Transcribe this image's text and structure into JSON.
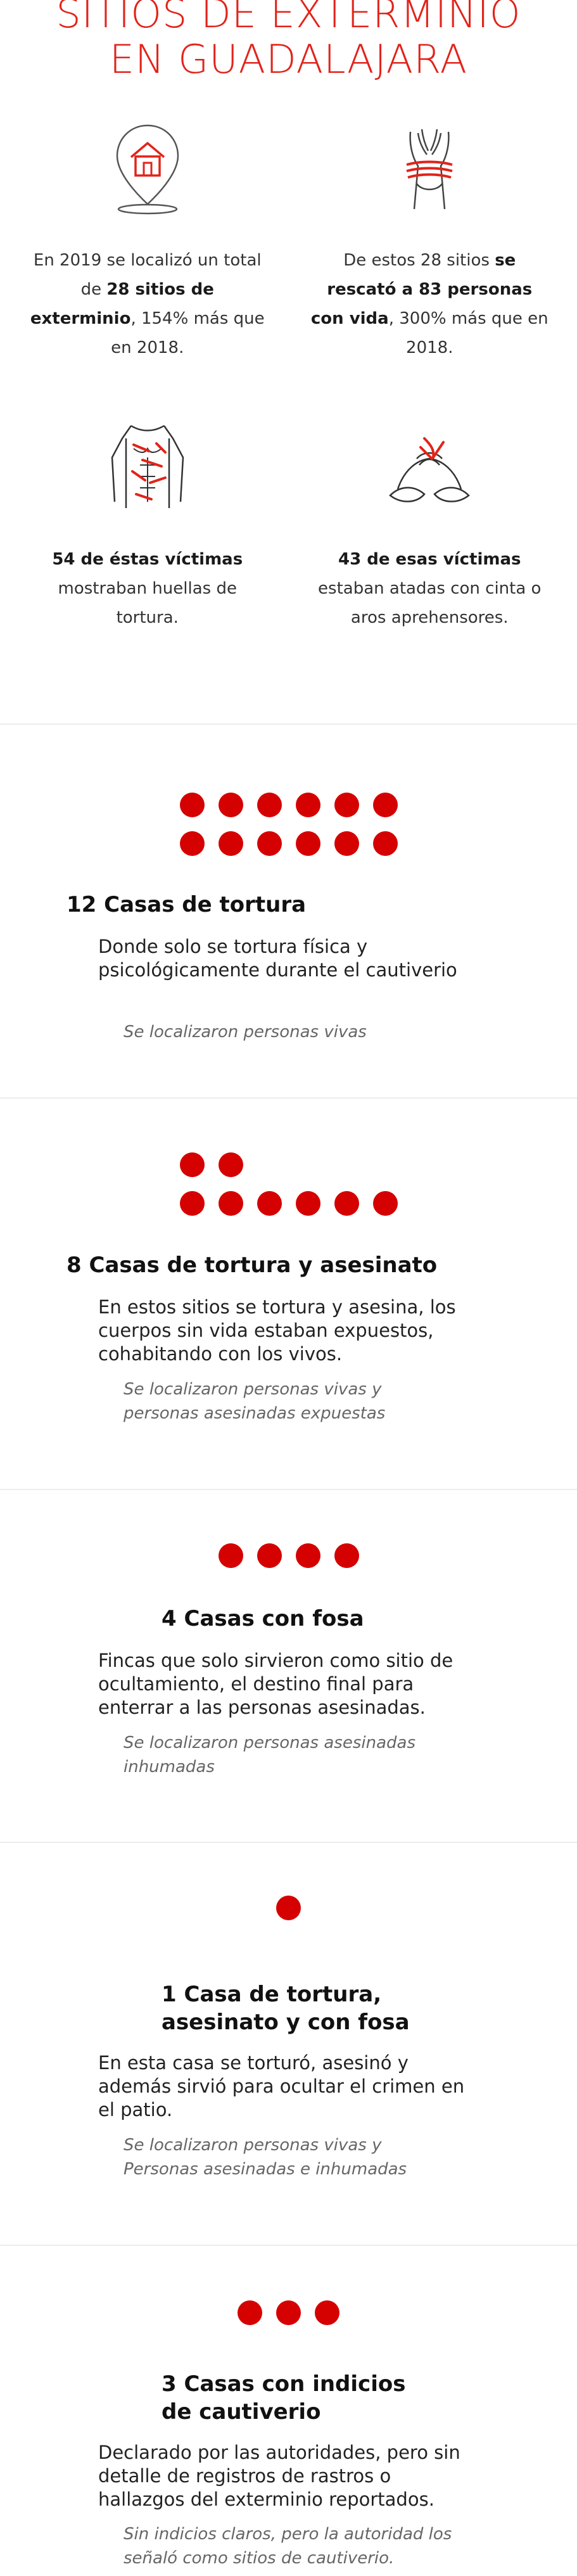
{
  "title": {
    "line1": "SITIOS DE EXTERMINIO",
    "line2": "EN GUADALAJARA"
  },
  "colors": {
    "accent": "#e2231a",
    "dot": "#d50000"
  },
  "stats": [
    {
      "icon": "location-pin-house-icon",
      "parts": [
        [
          "En 2019 se localizó un total de ",
          false
        ],
        [
          "28 sitios de exterminio",
          true
        ],
        [
          ", 154% más que en 2018.",
          false
        ]
      ]
    },
    {
      "icon": "tied-hands-icon",
      "parts": [
        [
          "De estos 28 sitios ",
          false
        ],
        [
          "se rescató a 83 personas con vida",
          true
        ],
        [
          ", 300% más que en 2018.",
          false
        ]
      ]
    },
    {
      "icon": "tortured-torso-icon",
      "parts": [
        [
          "54 de éstas víctimas",
          true
        ],
        [
          " mostraban huellas de tortura.",
          false
        ]
      ]
    },
    {
      "icon": "bound-wrists-icon",
      "parts": [
        [
          "43 de esas víctimas",
          true
        ],
        [
          " estaban atadas con cinta o aros aprehensores.",
          false
        ]
      ]
    }
  ],
  "categories": [
    {
      "count": 12,
      "title": "12 Casas de tortura",
      "description": "Donde solo se tortura física y psicológicamente  durante el cautiverio",
      "note": "Se localizaron personas vivas"
    },
    {
      "count": 8,
      "title": "8 Casas de tortura y asesinato",
      "description": "En estos sitios se tortura y asesina, los cuerpos sin vida estaban expuestos, cohabitando con los vivos.",
      "note": "Se localizaron personas vivas y personas asesinadas expuestas"
    },
    {
      "count": 4,
      "title": "4 Casas con fosa",
      "description": "Fincas que solo sirvieron como sitio de ocultamiento, el destino final para enterrar a las personas asesinadas.",
      "note": "Se localizaron personas asesinadas inhumadas"
    },
    {
      "count": 1,
      "title": "1 Casa de tortura, asesinato y con fosa",
      "description": "En esta casa se torturó, asesinó y además sirvió para ocultar el crimen en el patio.",
      "note": "Se localizaron personas vivas y Personas asesinadas e inhumadas"
    },
    {
      "count": 3,
      "title": "3 Casas con indicios de cautiverio",
      "description": "Declarado por las autoridades, pero sin detalle de registros de rastros o hallazgos del exterminio reportados.",
      "note": "Sin indicios claros, pero la autoridad los señaló como sitios de cautiverio."
    }
  ]
}
